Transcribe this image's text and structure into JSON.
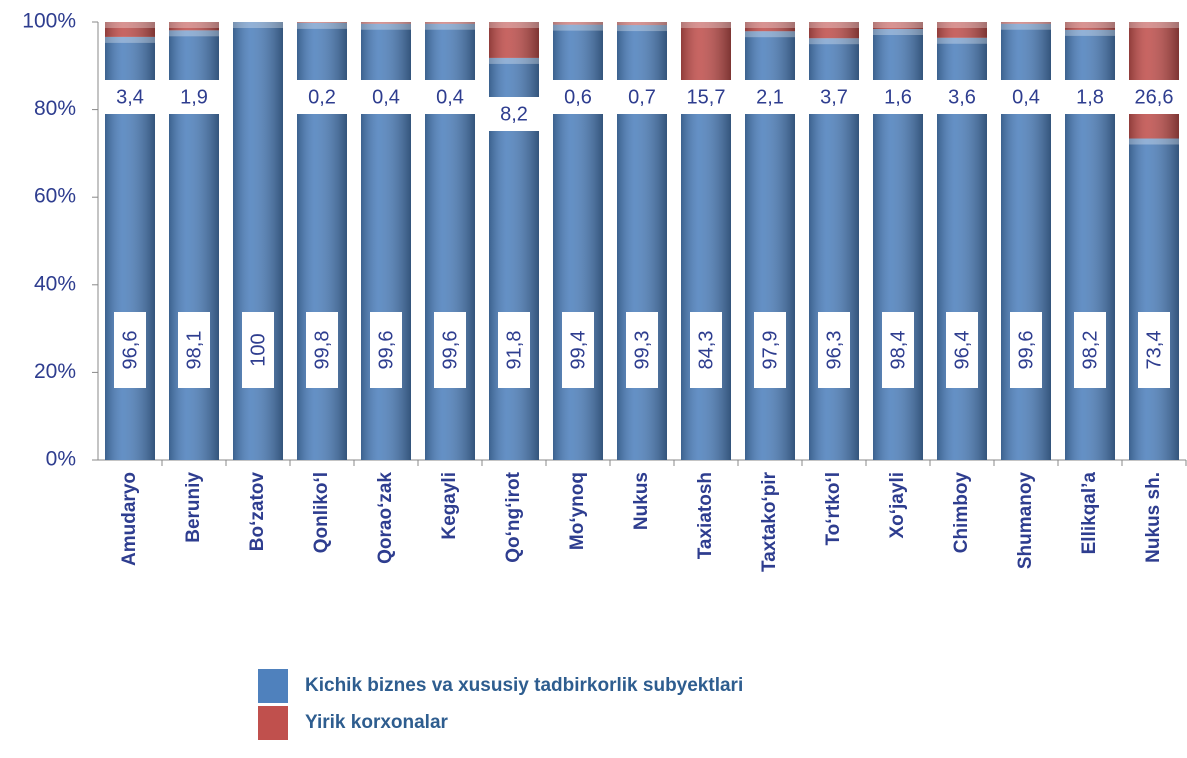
{
  "chart_data": {
    "type": "stacked_bar",
    "categories": [
      "Amudaryo",
      "Beruniy",
      "Bo‘zatov",
      "Qonliko‘l",
      "Qorao‘zak",
      "Kegayli",
      "Qo‘ng‘irot",
      "Mo‘ynoq",
      "Nukus",
      "Taxiatosh",
      "Taxtako‘pir",
      "To‘rtko‘l",
      "Xo‘jayli",
      "Chimboy",
      "Shumanoy",
      "Ellikqal’a",
      "Nukus sh."
    ],
    "series": [
      {
        "name": "Kichik biznes va xususiy tadbirkorlik subyektlari",
        "color": "#4f81bd",
        "values": [
          96.6,
          98.1,
          100,
          99.8,
          99.6,
          99.6,
          91.8,
          99.4,
          99.3,
          84.3,
          97.9,
          96.3,
          98.4,
          96.4,
          99.6,
          98.2,
          73.4
        ],
        "value_labels": [
          "96,6",
          "98,1",
          "100",
          "99,8",
          "99,6",
          "99,6",
          "91,8",
          "99,4",
          "99,3",
          "84,3",
          "97,9",
          "96,3",
          "98,4",
          "96,4",
          "99,6",
          "98,2",
          "73,4"
        ]
      },
      {
        "name": "Yirik korxonalar",
        "color": "#c0504d",
        "values": [
          3.4,
          1.9,
          0,
          0.2,
          0.4,
          0.4,
          8.2,
          0.6,
          0.7,
          15.7,
          2.1,
          3.7,
          1.6,
          3.6,
          0.4,
          1.8,
          26.6
        ],
        "value_labels": [
          "3,4",
          "1,9",
          null,
          "0,2",
          "0,4",
          "0,4",
          "8,2",
          "0,6",
          "0,7",
          "15,7",
          "2,1",
          "3,7",
          "1,6",
          "3,6",
          "0,4",
          "1,8",
          "26,6"
        ]
      }
    ],
    "ylim": [
      0,
      100
    ],
    "yticks": [
      {
        "value": 0,
        "label": "0%"
      },
      {
        "value": 20,
        "label": "20%"
      },
      {
        "value": 40,
        "label": "40%"
      },
      {
        "value": 60,
        "label": "60%"
      },
      {
        "value": 80,
        "label": "80%"
      },
      {
        "value": 100,
        "label": "100%"
      }
    ]
  }
}
